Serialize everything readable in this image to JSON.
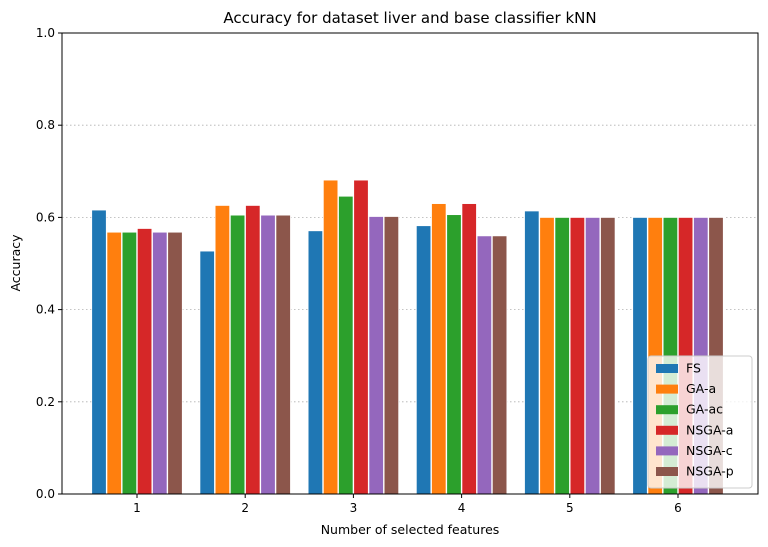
{
  "chart_data": {
    "type": "bar",
    "title": "Accuracy for dataset liver and base classifier kNN",
    "xlabel": "Number of selected features",
    "ylabel": "Accuracy",
    "ylim": [
      0,
      1.0
    ],
    "yticks": [
      "0.0",
      "0.2",
      "0.4",
      "0.6",
      "0.8",
      "1.0"
    ],
    "categories": [
      "1",
      "2",
      "3",
      "4",
      "5",
      "6"
    ],
    "grid": "horizontal-dotted",
    "legend_position": "lower-right",
    "series": [
      {
        "name": "FS",
        "color": "#1f77b4",
        "values": [
          0.616,
          0.527,
          0.571,
          0.582,
          0.614,
          0.6
        ]
      },
      {
        "name": "GA-a",
        "color": "#ff7f0e",
        "values": [
          0.568,
          0.626,
          0.681,
          0.63,
          0.6,
          0.6
        ]
      },
      {
        "name": "GA-ac",
        "color": "#2ca02c",
        "values": [
          0.568,
          0.605,
          0.646,
          0.606,
          0.6,
          0.6
        ]
      },
      {
        "name": "NSGA-a",
        "color": "#d62728",
        "values": [
          0.576,
          0.626,
          0.681,
          0.63,
          0.6,
          0.6
        ]
      },
      {
        "name": "NSGA-c",
        "color": "#9467bd",
        "values": [
          0.568,
          0.605,
          0.602,
          0.56,
          0.6,
          0.6
        ]
      },
      {
        "name": "NSGA-p",
        "color": "#8c564b",
        "values": [
          0.568,
          0.605,
          0.602,
          0.56,
          0.6,
          0.6
        ]
      }
    ]
  }
}
